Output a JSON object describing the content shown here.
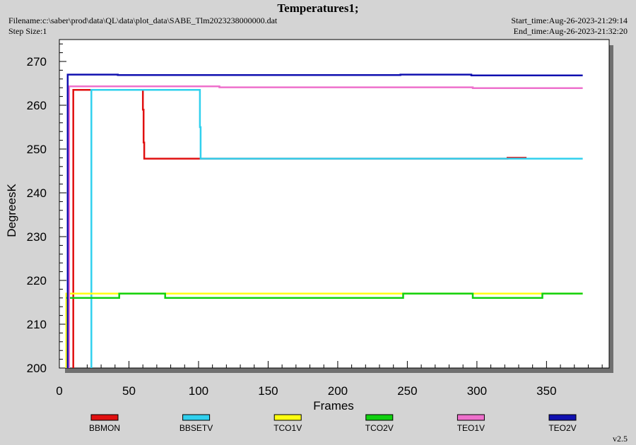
{
  "header": {
    "title": "Temperatures1;",
    "filename": "Filename:c:\\saber\\prod\\data\\QL\\data\\plot_data\\SABE_Tlm2023238000000.dat",
    "step_size": "Step Size:1",
    "start_time": "Start_time:Aug-26-2023-21:29:14",
    "end_time": "End_time:Aug-26-2023-21:32:20"
  },
  "footer": {
    "version": "v2.5"
  },
  "chart_data": {
    "type": "line",
    "title": "Temperatures1;",
    "xlabel": "Frames",
    "ylabel": "DegreesK",
    "xlim": [
      0,
      395
    ],
    "ylim": [
      200,
      275
    ],
    "xticks": [
      0,
      50,
      100,
      150,
      200,
      250,
      300,
      350
    ],
    "yticks": [
      200,
      210,
      220,
      230,
      240,
      250,
      260,
      270
    ],
    "grid": false,
    "legend_position": "bottom",
    "series": [
      {
        "name": "BBMON",
        "color": "#e01010",
        "points": [
          [
            10,
            200
          ],
          [
            10,
            263.5
          ],
          [
            60,
            263.5
          ],
          [
            60,
            259
          ],
          [
            60.5,
            259
          ],
          [
            60.5,
            251.5
          ],
          [
            61,
            251.5
          ],
          [
            61,
            247.8
          ],
          [
            322,
            247.8
          ],
          [
            322,
            248
          ],
          [
            335,
            248
          ],
          [
            335,
            247.8
          ]
        ]
      },
      {
        "name": "BBSETV",
        "color": "#30d0ee",
        "points": [
          [
            23,
            200
          ],
          [
            23,
            263.5
          ],
          [
            101,
            263.5
          ],
          [
            101,
            255
          ],
          [
            101.5,
            255
          ],
          [
            101.5,
            247.8
          ],
          [
            376,
            247.8
          ]
        ]
      },
      {
        "name": "TCO1V",
        "color": "#ffff10",
        "points": [
          [
            5,
            200
          ],
          [
            5,
            217
          ],
          [
            376,
            217
          ]
        ]
      },
      {
        "name": "TCO2V",
        "color": "#10d010",
        "points": [
          [
            5,
            216
          ],
          [
            43,
            216
          ],
          [
            43,
            217
          ],
          [
            76,
            217
          ],
          [
            76,
            216
          ],
          [
            247,
            216
          ],
          [
            247,
            217
          ],
          [
            297,
            217
          ],
          [
            297,
            216
          ],
          [
            347,
            216
          ],
          [
            347,
            217
          ],
          [
            376,
            217
          ]
        ]
      },
      {
        "name": "TEO1V",
        "color": "#ee70cc",
        "points": [
          [
            7,
            200
          ],
          [
            7,
            264.3
          ],
          [
            115,
            264.3
          ],
          [
            115,
            264.1
          ],
          [
            297,
            264.1
          ],
          [
            297,
            263.9
          ],
          [
            376,
            263.9
          ]
        ]
      },
      {
        "name": "TEO2V",
        "color": "#1010b0",
        "points": [
          [
            6,
            200
          ],
          [
            6,
            267
          ],
          [
            42,
            267
          ],
          [
            42,
            266.9
          ],
          [
            245,
            266.9
          ],
          [
            245,
            267
          ],
          [
            296,
            267
          ],
          [
            296,
            266.8
          ],
          [
            376,
            266.8
          ]
        ]
      }
    ]
  }
}
